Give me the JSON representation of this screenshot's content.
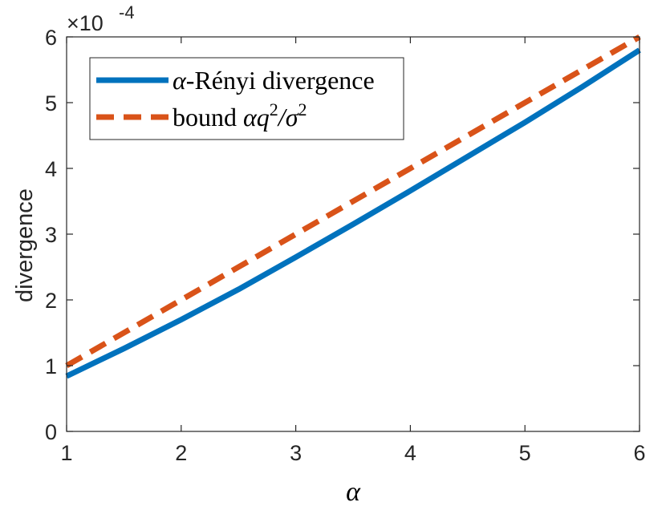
{
  "chart_data": {
    "type": "line",
    "xlabel": "α",
    "ylabel": "divergence",
    "xlim": [
      1,
      6
    ],
    "ylim": [
      0,
      6
    ],
    "x_ticks": [
      "1",
      "2",
      "3",
      "4",
      "5",
      "6"
    ],
    "y_ticks": [
      "0",
      "1",
      "2",
      "3",
      "4",
      "5",
      "6"
    ],
    "y_exponent": {
      "base": "×10",
      "power": "-4"
    },
    "grid": false,
    "legend_position": "top-left",
    "series": [
      {
        "name": "α-Rényi divergence",
        "legend": {
          "prefix": "α",
          "suffix": "-Rényi divergence"
        },
        "color": "#0072BD",
        "style": "solid",
        "x": [
          1,
          1.5,
          2,
          2.5,
          3,
          3.5,
          4,
          4.5,
          5,
          5.5,
          6
        ],
        "y": [
          0.84,
          1.26,
          1.7,
          2.16,
          2.65,
          3.15,
          3.66,
          4.18,
          4.7,
          5.24,
          5.8
        ]
      },
      {
        "name": "bound αq²/σ²",
        "legend": {
          "prefix": "bound ",
          "math": "αq",
          "sup1": "2",
          "slash": "/σ",
          "sup2": "2"
        },
        "color": "#D95319",
        "style": "dashed",
        "x": [
          1,
          1.5,
          2,
          2.5,
          3,
          3.5,
          4,
          4.5,
          5,
          5.5,
          6
        ],
        "y": [
          1.0,
          1.5,
          2.0,
          2.5,
          3.0,
          3.5,
          4.0,
          4.5,
          5.0,
          5.5,
          6.0
        ]
      }
    ]
  }
}
